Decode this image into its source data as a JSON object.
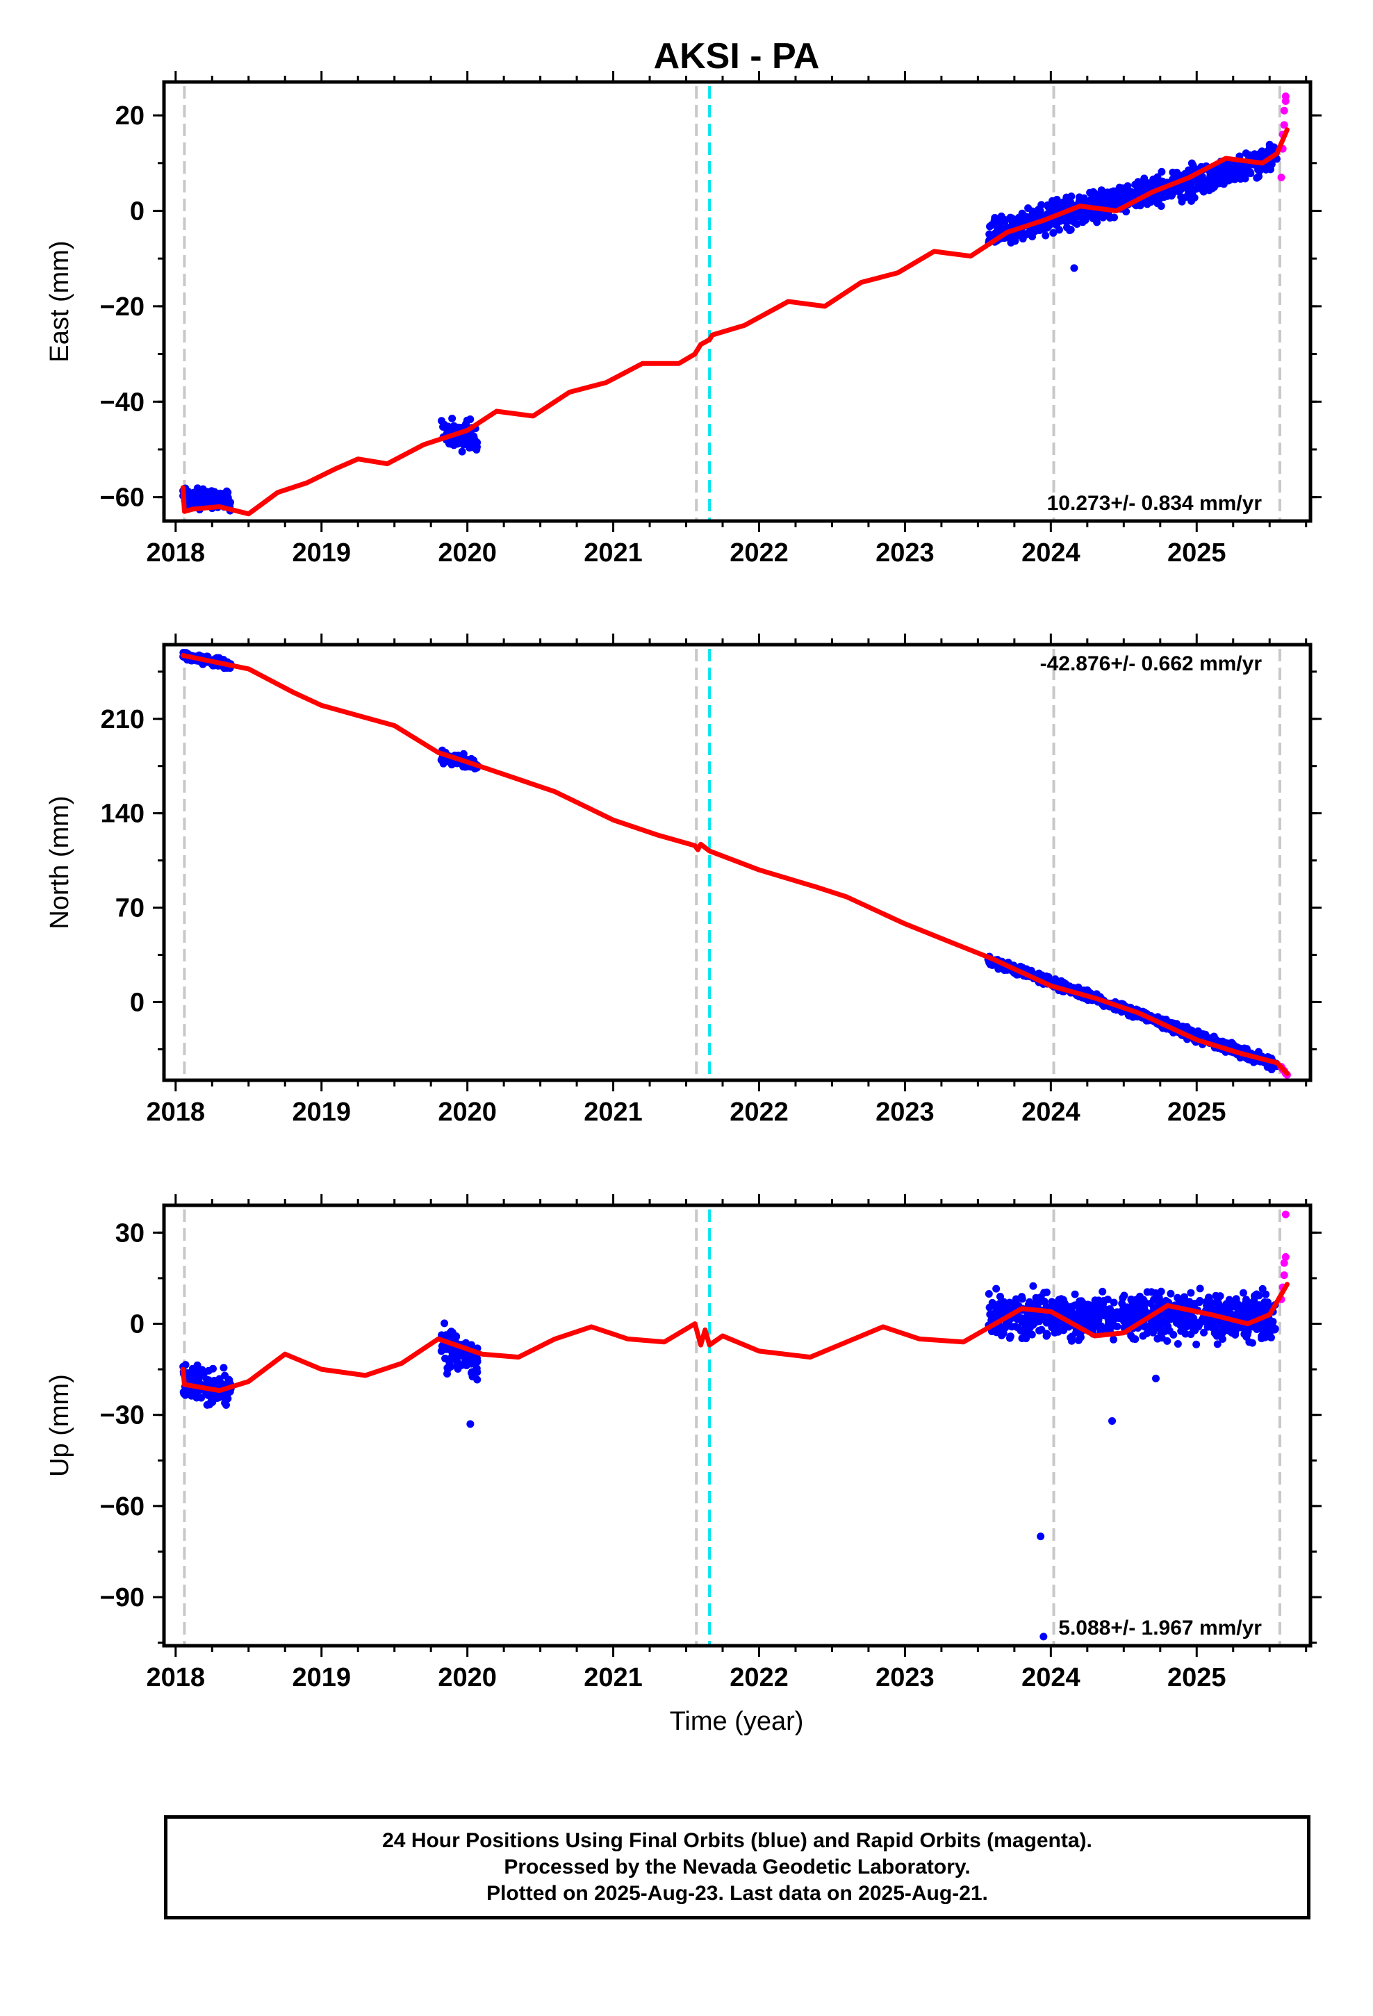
{
  "chart_data": {
    "title": "AKSI - PA",
    "xlabel": "Time (year)",
    "x_range": [
      2017.92,
      2025.78
    ],
    "x_ticks": [
      2018,
      2019,
      2020,
      2021,
      2022,
      2023,
      2024,
      2025
    ],
    "x_tick_labels": [
      "2018",
      "2019",
      "2020",
      "2021",
      "2022",
      "2023",
      "2024",
      "2025"
    ],
    "event_lines": [
      {
        "x": 2018.06,
        "color": "#c8c8c8",
        "style": "dashed"
      },
      {
        "x": 2021.57,
        "color": "#c8c8c8",
        "style": "dashed"
      },
      {
        "x": 2021.66,
        "color": "#00e5ee",
        "style": "dashed"
      },
      {
        "x": 2024.02,
        "color": "#c8c8c8",
        "style": "dashed"
      },
      {
        "x": 2025.57,
        "color": "#c8c8c8",
        "style": "dashed"
      }
    ],
    "series_colors": {
      "final_orbits": "#0000ff",
      "rapid_orbits": "#ff00ff",
      "model_fit": "#ff0000"
    },
    "panels": [
      {
        "type": "scatter",
        "ylabel": "East (mm)",
        "ylim": [
          -65,
          27
        ],
        "yticks": [
          20,
          0,
          -20,
          -40,
          -60
        ],
        "ytick_labels": [
          "20",
          "0",
          "−20",
          "−40",
          "−60"
        ],
        "rate_label": "10.273+/- 0.834 mm/yr",
        "rate_position": "bottom-right",
        "final_orbit_segments": [
          {
            "x": [
              2018.05,
              2018.38
            ],
            "y": [
              -60,
              -61
            ],
            "spread": 1.5
          },
          {
            "x": [
              2019.82,
              2020.07
            ],
            "y": [
              -46,
              -48
            ],
            "spread": 2
          },
          {
            "x": [
              2023.57,
              2025.55
            ],
            "y": [
              -5,
              11
            ],
            "spread": 2
          }
        ],
        "outliers": [
          {
            "x": 2024.16,
            "y": -12
          }
        ],
        "rapid_orbits": [
          {
            "x": 2025.58,
            "y": 7
          },
          {
            "x": 2025.59,
            "y": 13
          },
          {
            "x": 2025.59,
            "y": 16
          },
          {
            "x": 2025.6,
            "y": 18
          },
          {
            "x": 2025.6,
            "y": 21
          },
          {
            "x": 2025.61,
            "y": 23
          },
          {
            "x": 2025.61,
            "y": 24
          }
        ],
        "model_fit": [
          [
            2018.05,
            -58
          ],
          [
            2018.06,
            -63
          ],
          [
            2018.12,
            -62.5
          ],
          [
            2018.3,
            -62
          ],
          [
            2018.5,
            -63.5
          ],
          [
            2018.7,
            -59
          ],
          [
            2018.9,
            -57
          ],
          [
            2019.1,
            -54
          ],
          [
            2019.25,
            -52
          ],
          [
            2019.45,
            -53
          ],
          [
            2019.7,
            -49
          ],
          [
            2020.0,
            -46
          ],
          [
            2020.2,
            -42
          ],
          [
            2020.45,
            -43
          ],
          [
            2020.7,
            -38
          ],
          [
            2020.95,
            -36
          ],
          [
            2021.2,
            -32
          ],
          [
            2021.45,
            -32
          ],
          [
            2021.56,
            -30
          ],
          [
            2021.57,
            -29.5
          ],
          [
            2021.6,
            -28
          ],
          [
            2021.66,
            -27
          ],
          [
            2021.68,
            -26
          ],
          [
            2021.9,
            -24
          ],
          [
            2022.2,
            -19
          ],
          [
            2022.45,
            -20
          ],
          [
            2022.7,
            -15
          ],
          [
            2022.95,
            -13
          ],
          [
            2023.2,
            -8.5
          ],
          [
            2023.45,
            -9.5
          ],
          [
            2023.7,
            -4.5
          ],
          [
            2023.95,
            -2
          ],
          [
            2024.2,
            1
          ],
          [
            2024.45,
            0
          ],
          [
            2024.7,
            4
          ],
          [
            2024.95,
            7
          ],
          [
            2025.2,
            11
          ],
          [
            2025.45,
            10
          ],
          [
            2025.55,
            12
          ],
          [
            2025.62,
            17
          ]
        ]
      },
      {
        "type": "scatter",
        "ylabel": "North (mm)",
        "ylim": [
          -58,
          265
        ],
        "yticks": [
          210,
          140,
          70,
          0
        ],
        "ytick_labels": [
          "210",
          "140",
          "70",
          "0"
        ],
        "rate_label": "-42.876+/- 0.662 mm/yr",
        "rate_position": "top-right",
        "final_orbit_segments": [
          {
            "x": [
              2018.05,
              2018.38
            ],
            "y": [
              257,
              250
            ],
            "spread": 2
          },
          {
            "x": [
              2019.82,
              2020.07
            ],
            "y": [
              182,
              175
            ],
            "spread": 3
          },
          {
            "x": [
              2023.57,
              2025.55
            ],
            "y": [
              32,
              -47
            ],
            "spread": 2.5
          }
        ],
        "outliers": [],
        "rapid_orbits": [
          {
            "x": 2025.58,
            "y": -48
          },
          {
            "x": 2025.59,
            "y": -50
          },
          {
            "x": 2025.6,
            "y": -51
          },
          {
            "x": 2025.61,
            "y": -53
          },
          {
            "x": 2025.62,
            "y": -54
          }
        ],
        "model_fit": [
          [
            2018.05,
            257
          ],
          [
            2018.5,
            247
          ],
          [
            2018.8,
            230
          ],
          [
            2019.0,
            220
          ],
          [
            2019.5,
            205
          ],
          [
            2019.8,
            185
          ],
          [
            2020.0,
            178
          ],
          [
            2020.3,
            167
          ],
          [
            2020.6,
            156
          ],
          [
            2021.0,
            135
          ],
          [
            2021.3,
            124
          ],
          [
            2021.56,
            116
          ],
          [
            2021.58,
            113
          ],
          [
            2021.6,
            117
          ],
          [
            2021.66,
            112
          ],
          [
            2022.0,
            98
          ],
          [
            2022.4,
            85
          ],
          [
            2022.6,
            78
          ],
          [
            2023.0,
            58
          ],
          [
            2023.3,
            45
          ],
          [
            2023.6,
            32
          ],
          [
            2024.0,
            12
          ],
          [
            2024.3,
            3
          ],
          [
            2024.6,
            -8
          ],
          [
            2025.0,
            -28
          ],
          [
            2025.3,
            -38
          ],
          [
            2025.55,
            -45
          ],
          [
            2025.62,
            -53
          ]
        ]
      },
      {
        "type": "scatter",
        "ylabel": "Up (mm)",
        "ylim": [
          -106,
          39
        ],
        "yticks": [
          30,
          0,
          -30,
          -60,
          -90
        ],
        "ytick_labels": [
          "30",
          "0",
          "−30",
          "−60",
          "−90"
        ],
        "rate_label": "5.088+/- 1.967 mm/yr",
        "rate_position": "bottom-right",
        "final_orbit_segments": [
          {
            "x": [
              2018.05,
              2018.38
            ],
            "y": [
              -18,
              -22
            ],
            "spread": 4
          },
          {
            "x": [
              2019.82,
              2020.07
            ],
            "y": [
              -8,
              -12
            ],
            "spread": 5
          },
          {
            "x": [
              2023.57,
              2025.55
            ],
            "y": [
              3,
              2
            ],
            "spread": 5
          }
        ],
        "outliers": [
          {
            "x": 2023.93,
            "y": -70
          },
          {
            "x": 2024.42,
            "y": -32
          },
          {
            "x": 2024.72,
            "y": -18
          },
          {
            "x": 2020.02,
            "y": -33
          },
          {
            "x": 2023.95,
            "y": -103
          }
        ],
        "rapid_orbits": [
          {
            "x": 2025.58,
            "y": 8
          },
          {
            "x": 2025.59,
            "y": 12
          },
          {
            "x": 2025.6,
            "y": 16
          },
          {
            "x": 2025.6,
            "y": 20
          },
          {
            "x": 2025.61,
            "y": 22
          },
          {
            "x": 2025.61,
            "y": 36
          }
        ],
        "model_fit": [
          [
            2018.05,
            -15
          ],
          [
            2018.06,
            -20
          ],
          [
            2018.3,
            -22
          ],
          [
            2018.5,
            -19
          ],
          [
            2018.75,
            -10
          ],
          [
            2019.0,
            -15
          ],
          [
            2019.3,
            -17
          ],
          [
            2019.55,
            -13
          ],
          [
            2019.8,
            -5
          ],
          [
            2020.1,
            -10
          ],
          [
            2020.35,
            -11
          ],
          [
            2020.6,
            -5
          ],
          [
            2020.85,
            -1
          ],
          [
            2021.1,
            -5
          ],
          [
            2021.35,
            -6
          ],
          [
            2021.56,
            0
          ],
          [
            2021.6,
            -7
          ],
          [
            2021.63,
            -2
          ],
          [
            2021.66,
            -7
          ],
          [
            2021.75,
            -4
          ],
          [
            2022.0,
            -9
          ],
          [
            2022.35,
            -11
          ],
          [
            2022.6,
            -6
          ],
          [
            2022.85,
            -1
          ],
          [
            2023.1,
            -5
          ],
          [
            2023.4,
            -6
          ],
          [
            2023.8,
            5
          ],
          [
            2024.0,
            4
          ],
          [
            2024.3,
            -4
          ],
          [
            2024.5,
            -3
          ],
          [
            2024.8,
            6
          ],
          [
            2025.1,
            3
          ],
          [
            2025.35,
            0
          ],
          [
            2025.5,
            3
          ],
          [
            2025.62,
            13
          ]
        ]
      }
    ]
  },
  "footer": {
    "line1": "24 Hour Positions Using Final Orbits (blue) and Rapid Orbits (magenta).",
    "line2": "Processed by the Nevada Geodetic Laboratory.",
    "line3": "Plotted on 2025-Aug-23. Last data on 2025-Aug-21."
  }
}
